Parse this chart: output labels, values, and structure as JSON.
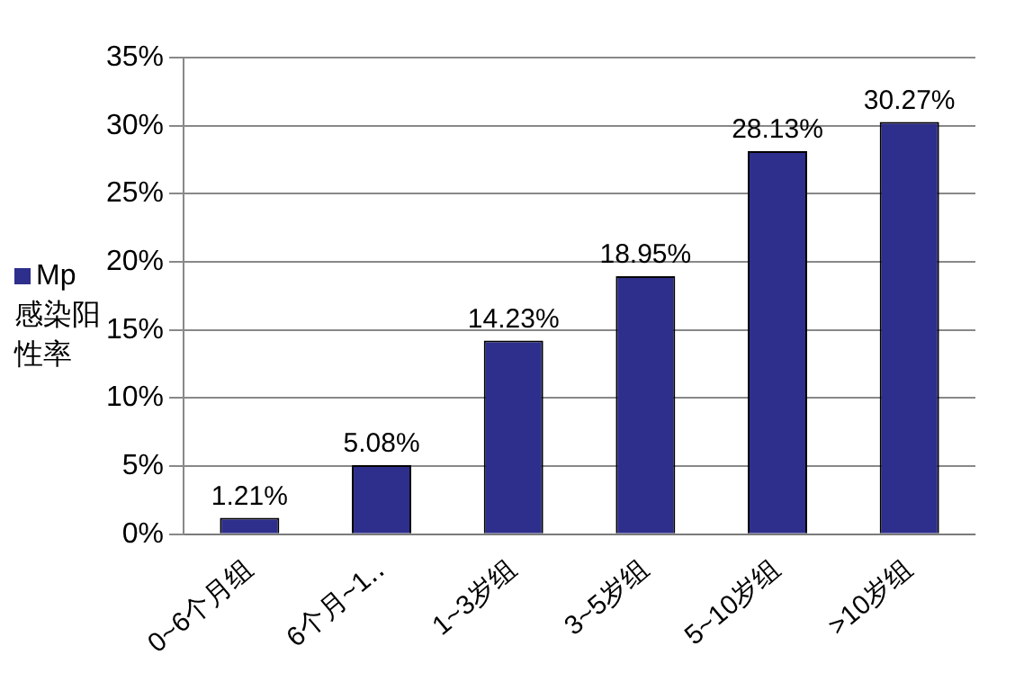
{
  "chart_data": {
    "type": "bar",
    "categories": [
      "0~6个月组",
      "6个月~1‥",
      "1~3岁组",
      "3~5岁组",
      "5~10岁组",
      ">10岁组"
    ],
    "series": [
      {
        "name": "Mp感染阳性率",
        "color": "#2e2e8c",
        "values": [
          1.21,
          5.08,
          14.23,
          18.95,
          28.13,
          30.27
        ],
        "value_labels": [
          "1.21%",
          "5.08%",
          "14.23%",
          "18.95%",
          "28.13%",
          "30.27%"
        ]
      }
    ],
    "ylim": [
      0,
      35
    ],
    "yticks": [
      {
        "value": 0,
        "label": "0%"
      },
      {
        "value": 5,
        "label": "5%"
      },
      {
        "value": 10,
        "label": "10%"
      },
      {
        "value": 15,
        "label": "15%"
      },
      {
        "value": 20,
        "label": "20%"
      },
      {
        "value": 25,
        "label": "25%"
      },
      {
        "value": 30,
        "label": "30%"
      },
      {
        "value": 35,
        "label": "35%"
      }
    ],
    "grid": "y",
    "legend": "left"
  }
}
